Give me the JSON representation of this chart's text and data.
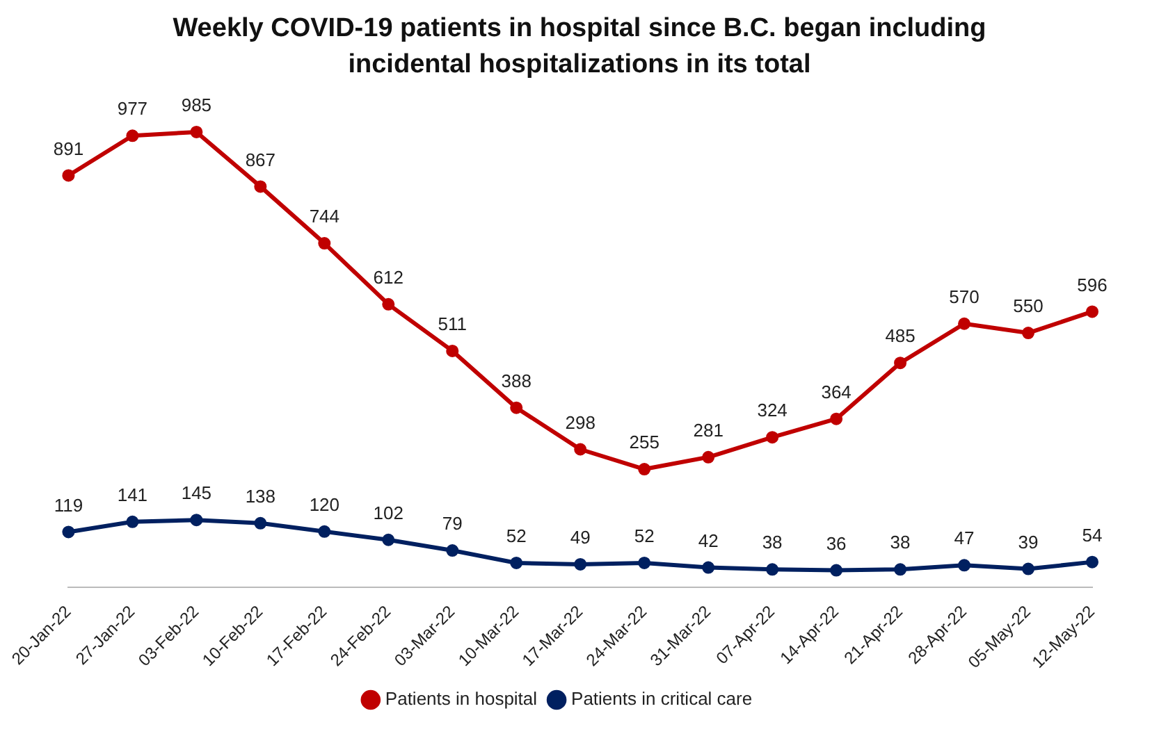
{
  "chart_data": {
    "type": "line",
    "title": "Weekly COVID-19 patients in hospital since B.C. began including incidental hospitalizations in its total",
    "categories": [
      "20-Jan-22",
      "27-Jan-22",
      "03-Feb-22",
      "10-Feb-22",
      "17-Feb-22",
      "24-Feb-22",
      "03-Mar-22",
      "10-Mar-22",
      "17-Mar-22",
      "24-Mar-22",
      "31-Mar-22",
      "07-Apr-22",
      "14-Apr-22",
      "21-Apr-22",
      "28-Apr-22",
      "05-May-22",
      "12-May-22"
    ],
    "series": [
      {
        "name": "Patients in hospital",
        "color": "#c00000",
        "values": [
          891,
          977,
          985,
          867,
          744,
          612,
          511,
          388,
          298,
          255,
          281,
          324,
          364,
          485,
          570,
          550,
          596
        ]
      },
      {
        "name": "Patients in critical care",
        "color": "#002060",
        "values": [
          119,
          141,
          145,
          138,
          120,
          102,
          79,
          52,
          49,
          52,
          42,
          38,
          36,
          38,
          47,
          39,
          54
        ]
      }
    ],
    "data_labels": true,
    "legend": "bottom",
    "grid": false,
    "marker": "circle",
    "line_style": "solid"
  }
}
